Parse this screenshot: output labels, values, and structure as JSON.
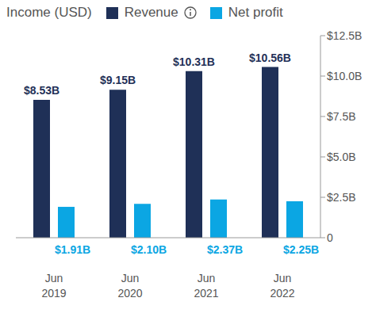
{
  "chart_data": {
    "type": "bar",
    "title": "Income (USD)",
    "categories": [
      "Jun 2019",
      "Jun 2020",
      "Jun 2021",
      "Jun 2022"
    ],
    "series": [
      {
        "name": "Revenue",
        "color": "#1f3057",
        "values": [
          8.53,
          9.15,
          10.31,
          10.56
        ],
        "value_labels": [
          "$8.53B",
          "$9.15B",
          "$10.31B",
          "$10.56B"
        ]
      },
      {
        "name": "Net profit",
        "color": "#0ba6e3",
        "values": [
          1.91,
          2.1,
          2.37,
          2.25
        ],
        "value_labels": [
          "$1.91B",
          "$2.10B",
          "$2.37B",
          "$2.25B"
        ]
      }
    ],
    "ylim": [
      0,
      12.5
    ],
    "yticks": [
      0,
      {
        "value": 2.5,
        "label": "$2.5B"
      },
      {
        "value": 5,
        "label": "$5.0B"
      },
      {
        "value": 7.5,
        "label": "$7.5B"
      },
      {
        "value": 10,
        "label": "$10.0B"
      },
      {
        "value": 12.5,
        "label": "$12.5B"
      }
    ],
    "grid": false,
    "data_labels": true
  }
}
